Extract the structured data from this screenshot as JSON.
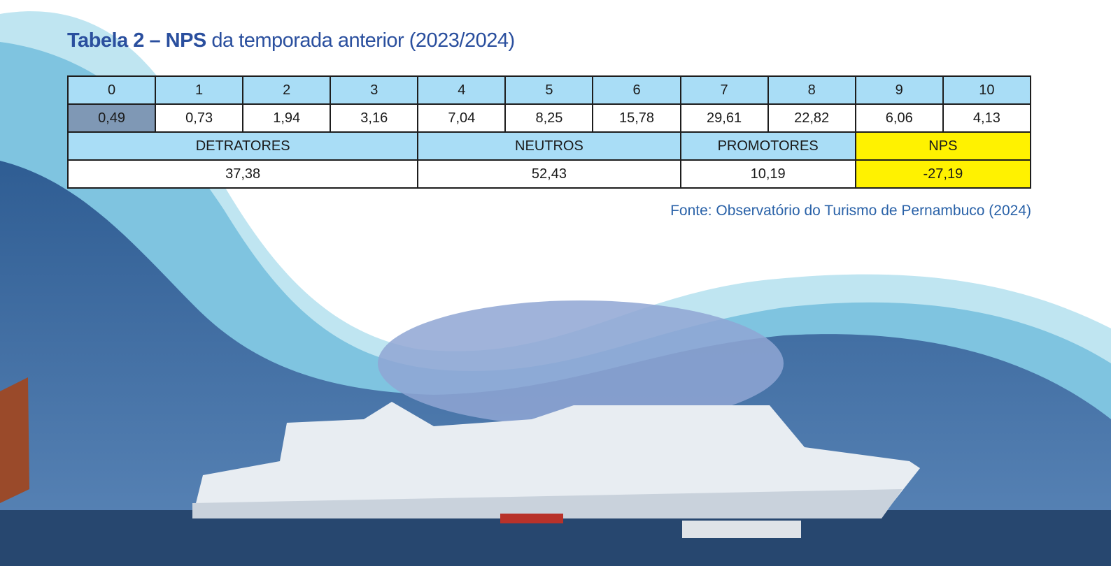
{
  "title_bold": "Tabela 2 – NPS",
  "title_rest": " da temporada anterior (2023/2024)",
  "table": {
    "scores": [
      "0",
      "1",
      "2",
      "3",
      "4",
      "5",
      "6",
      "7",
      "8",
      "9",
      "10"
    ],
    "percentages": [
      "0,49",
      "0,73",
      "1,94",
      "3,16",
      "7,04",
      "8,25",
      "15,78",
      "29,61",
      "22,82",
      "6,06",
      "4,13"
    ],
    "groups": [
      {
        "label": "DETRATORES",
        "value": "37,38"
      },
      {
        "label": "NEUTROS",
        "value": "52,43"
      },
      {
        "label": "PROMOTORES",
        "value": "10,19"
      },
      {
        "label": "NPS",
        "value": "-27,19"
      }
    ]
  },
  "source": "Fonte: Observatório do Turismo de Pernambuco (2024)"
}
